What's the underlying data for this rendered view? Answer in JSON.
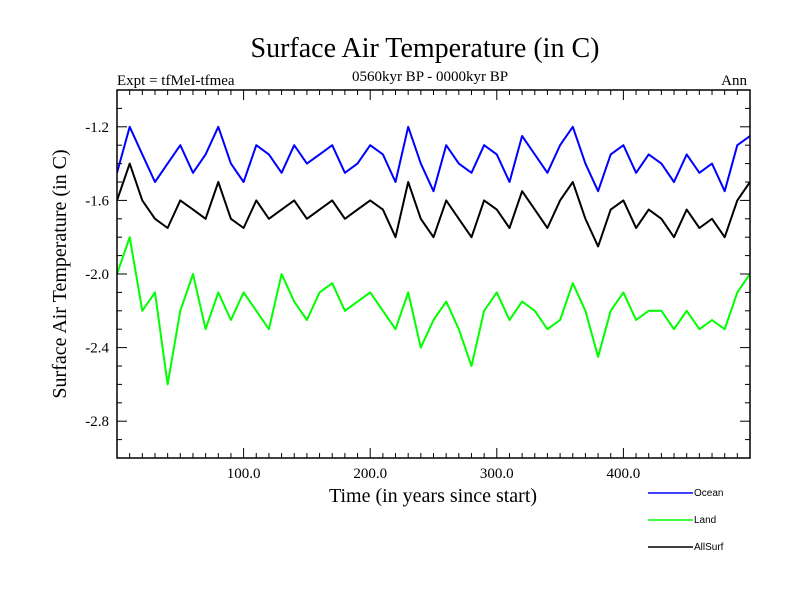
{
  "chart_data": {
    "type": "line",
    "title": "Surface Air Temperature (in C)",
    "subtitle_left": "Expt = tfMeI-tfmea",
    "subtitle_center": "0560kyr BP - 0000kyr BP",
    "subtitle_right": "Ann",
    "xlabel": "Time (in years since start)",
    "ylabel": "Surface Air Temperature (in C)",
    "xlim": [
      0,
      500
    ],
    "ylim": [
      -3.0,
      -1.0
    ],
    "x_ticks": [
      100.0,
      200.0,
      300.0,
      400.0
    ],
    "x_tick_labels": [
      "100.0",
      "200.0",
      "300.0",
      "400.0"
    ],
    "y_ticks": [
      -2.8,
      -2.4,
      -2.0,
      -1.6,
      -1.2
    ],
    "y_tick_labels": [
      "-2.8",
      "-2.4",
      "-2.0",
      "-1.6",
      "-1.2"
    ],
    "grid": false,
    "legend_position": "bottom-right",
    "series": [
      {
        "name": "Ocean",
        "color": "#0000ff",
        "x": [
          0,
          10,
          20,
          30,
          40,
          50,
          60,
          70,
          80,
          90,
          100,
          110,
          120,
          130,
          140,
          150,
          160,
          170,
          180,
          190,
          200,
          210,
          220,
          230,
          240,
          250,
          260,
          270,
          280,
          290,
          300,
          310,
          320,
          330,
          340,
          350,
          360,
          370,
          380,
          390,
          400,
          410,
          420,
          430,
          440,
          450,
          460,
          470,
          480,
          490,
          500
        ],
        "y": [
          -1.45,
          -1.2,
          -1.35,
          -1.5,
          -1.4,
          -1.3,
          -1.45,
          -1.35,
          -1.2,
          -1.4,
          -1.5,
          -1.3,
          -1.35,
          -1.45,
          -1.3,
          -1.4,
          -1.35,
          -1.3,
          -1.45,
          -1.4,
          -1.3,
          -1.35,
          -1.5,
          -1.2,
          -1.4,
          -1.55,
          -1.3,
          -1.4,
          -1.45,
          -1.3,
          -1.35,
          -1.5,
          -1.25,
          -1.35,
          -1.45,
          -1.3,
          -1.2,
          -1.4,
          -1.55,
          -1.35,
          -1.3,
          -1.45,
          -1.35,
          -1.4,
          -1.5,
          -1.35,
          -1.45,
          -1.4,
          -1.55,
          -1.3,
          -1.25
        ]
      },
      {
        "name": "Land",
        "color": "#00ff00",
        "x": [
          0,
          10,
          20,
          30,
          40,
          50,
          60,
          70,
          80,
          90,
          100,
          110,
          120,
          130,
          140,
          150,
          160,
          170,
          180,
          190,
          200,
          210,
          220,
          230,
          240,
          250,
          260,
          270,
          280,
          290,
          300,
          310,
          320,
          330,
          340,
          350,
          360,
          370,
          380,
          390,
          400,
          410,
          420,
          430,
          440,
          450,
          460,
          470,
          480,
          490,
          500
        ],
        "y": [
          -2.0,
          -1.8,
          -2.2,
          -2.1,
          -2.6,
          -2.2,
          -2.0,
          -2.3,
          -2.1,
          -2.25,
          -2.1,
          -2.2,
          -2.3,
          -2.0,
          -2.15,
          -2.25,
          -2.1,
          -2.05,
          -2.2,
          -2.15,
          -2.1,
          -2.2,
          -2.3,
          -2.1,
          -2.4,
          -2.25,
          -2.15,
          -2.3,
          -2.5,
          -2.2,
          -2.1,
          -2.25,
          -2.15,
          -2.2,
          -2.3,
          -2.25,
          -2.05,
          -2.2,
          -2.45,
          -2.2,
          -2.1,
          -2.25,
          -2.2,
          -2.2,
          -2.3,
          -2.2,
          -2.3,
          -2.25,
          -2.3,
          -2.1,
          -2.0
        ]
      },
      {
        "name": "AllSurf",
        "color": "#000000",
        "x": [
          0,
          10,
          20,
          30,
          40,
          50,
          60,
          70,
          80,
          90,
          100,
          110,
          120,
          130,
          140,
          150,
          160,
          170,
          180,
          190,
          200,
          210,
          220,
          230,
          240,
          250,
          260,
          270,
          280,
          290,
          300,
          310,
          320,
          330,
          340,
          350,
          360,
          370,
          380,
          390,
          400,
          410,
          420,
          430,
          440,
          450,
          460,
          470,
          480,
          490,
          500
        ],
        "y": [
          -1.6,
          -1.4,
          -1.6,
          -1.7,
          -1.75,
          -1.6,
          -1.65,
          -1.7,
          -1.5,
          -1.7,
          -1.75,
          -1.6,
          -1.7,
          -1.65,
          -1.6,
          -1.7,
          -1.65,
          -1.6,
          -1.7,
          -1.65,
          -1.6,
          -1.65,
          -1.8,
          -1.5,
          -1.7,
          -1.8,
          -1.6,
          -1.7,
          -1.8,
          -1.6,
          -1.65,
          -1.75,
          -1.55,
          -1.65,
          -1.75,
          -1.6,
          -1.5,
          -1.7,
          -1.85,
          -1.65,
          -1.6,
          -1.75,
          -1.65,
          -1.7,
          -1.8,
          -1.65,
          -1.75,
          -1.7,
          -1.8,
          -1.6,
          -1.5
        ]
      }
    ]
  }
}
